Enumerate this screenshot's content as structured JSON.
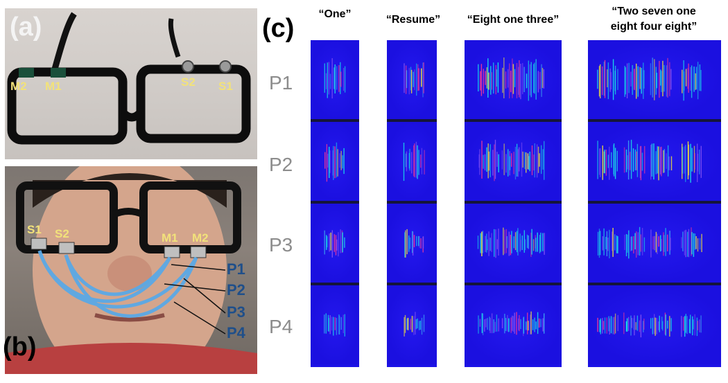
{
  "panels": {
    "a": "(a)",
    "b": "(b)",
    "c": "(c)"
  },
  "sensors_a": [
    "M2",
    "M1",
    "S2",
    "S1"
  ],
  "sensors_b": [
    "S1",
    "S2",
    "M1",
    "M2"
  ],
  "paths": [
    "P1",
    "P2",
    "P3",
    "P4"
  ],
  "rows": [
    "P1",
    "P2",
    "P3",
    "P4"
  ],
  "columns": [
    {
      "title": "“One”"
    },
    {
      "title": "“Resume”"
    },
    {
      "title": "“Eight one three”"
    },
    {
      "title_line1": "“Two seven one",
      "title_line2": "eight four eight”"
    }
  ],
  "colors": {
    "spectrogram_bg": "#1c12e6",
    "label_yellow": "#f2e27a",
    "path_blue": "#1f4f8a",
    "row_gray": "#8c8c8c"
  }
}
